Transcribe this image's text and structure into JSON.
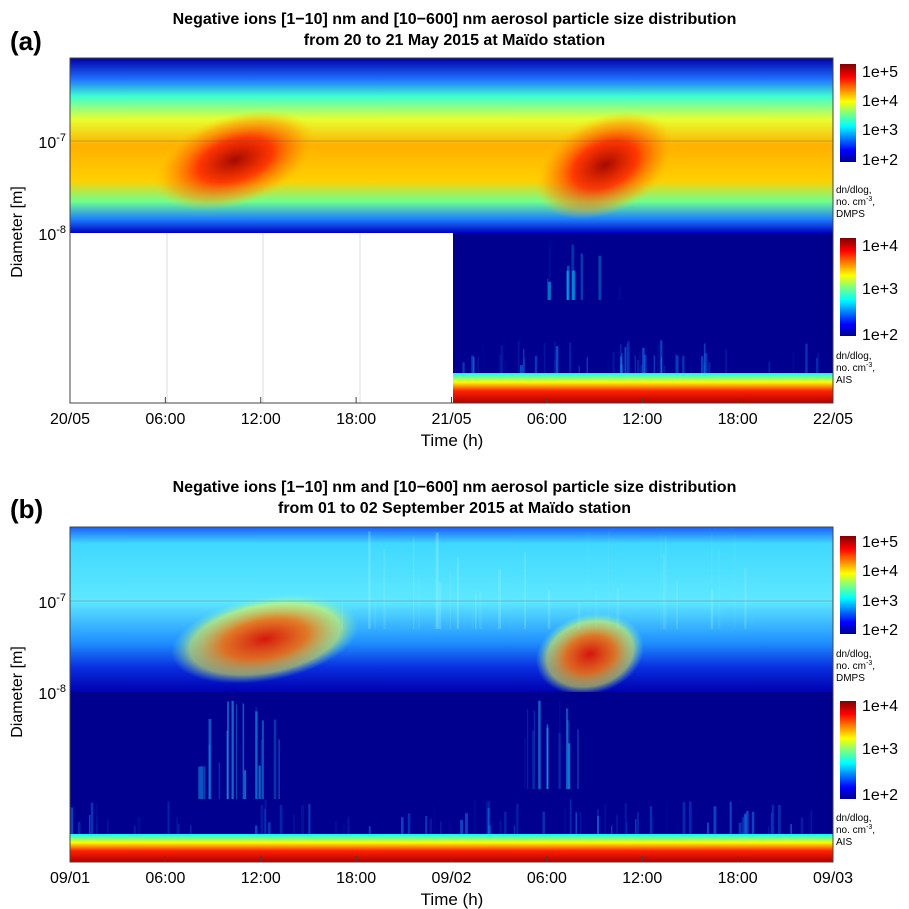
{
  "chart_data": [
    {
      "type": "heatmap",
      "panel_label": "(a)",
      "title_line1": "Negative ions [1−10] nm and [10−600] nm aerosol particle size distribution",
      "title_line2": "from 20 to 21 May 2015 at Maïdo station",
      "xlabel": "Time (h)",
      "ylabel": "Diameter [m]",
      "xticks": [
        "20/05",
        "06:00",
        "12:00",
        "18:00",
        "21/05",
        "06:00",
        "12:00",
        "18:00",
        "22/05"
      ],
      "yticks": [
        {
          "base": "10",
          "exp": "-7"
        },
        {
          "base": "10",
          "exp": "-8"
        }
      ],
      "ais_missing_until_hours": 24,
      "colorbars": [
        {
          "ticks": [
            "1e+5",
            "1e+4",
            "1e+3",
            "1e+2"
          ],
          "label": [
            "dn/dlog,",
            "no. cm",
            "DMPS"
          ],
          "label_exp": "-3"
        },
        {
          "ticks": [
            "1e+4",
            "1e+3",
            "1e+2"
          ],
          "label": [
            "dn/dlog,",
            "no. cm",
            "AIS"
          ],
          "label_exp": "-3"
        }
      ],
      "events": [
        {
          "day": "20/05",
          "start": "06:00",
          "end": "15:00",
          "start_diameter_nm": 20,
          "end_diameter_nm": 90
        },
        {
          "day": "21/05",
          "start": "05:00",
          "end": "13:00",
          "start_diameter_nm": 12,
          "end_diameter_nm": 80
        }
      ]
    },
    {
      "type": "heatmap",
      "panel_label": "(b)",
      "title_line1": "Negative ions [1−10] nm and [10−600] nm aerosol particle size distribution",
      "title_line2": "from 01 to 02 September 2015 at Maïdo station",
      "xlabel": "Time (h)",
      "ylabel": "Diameter [m]",
      "xticks": [
        "09/01",
        "06:00",
        "12:00",
        "18:00",
        "09/02",
        "06:00",
        "12:00",
        "18:00",
        "09/03"
      ],
      "yticks": [
        {
          "base": "10",
          "exp": "-7"
        },
        {
          "base": "10",
          "exp": "-8"
        }
      ],
      "colorbars": [
        {
          "ticks": [
            "1e+5",
            "1e+4",
            "1e+3",
            "1e+2"
          ],
          "label": [
            "dn/dlog,",
            "no. cm",
            "DMPS"
          ],
          "label_exp": "-3"
        },
        {
          "ticks": [
            "1e+4",
            "1e+3",
            "1e+2"
          ],
          "label": [
            "dn/dlog,",
            "no. cm",
            "AIS"
          ],
          "label_exp": "-3"
        }
      ],
      "events": [
        {
          "day": "09/01",
          "start": "07:00",
          "end": "17:00",
          "start_diameter_nm": 18,
          "end_diameter_nm": 40
        },
        {
          "day": "09/02",
          "start": "05:00",
          "end": "11:00",
          "start_diameter_nm": 12,
          "end_diameter_nm": 25
        }
      ]
    }
  ]
}
